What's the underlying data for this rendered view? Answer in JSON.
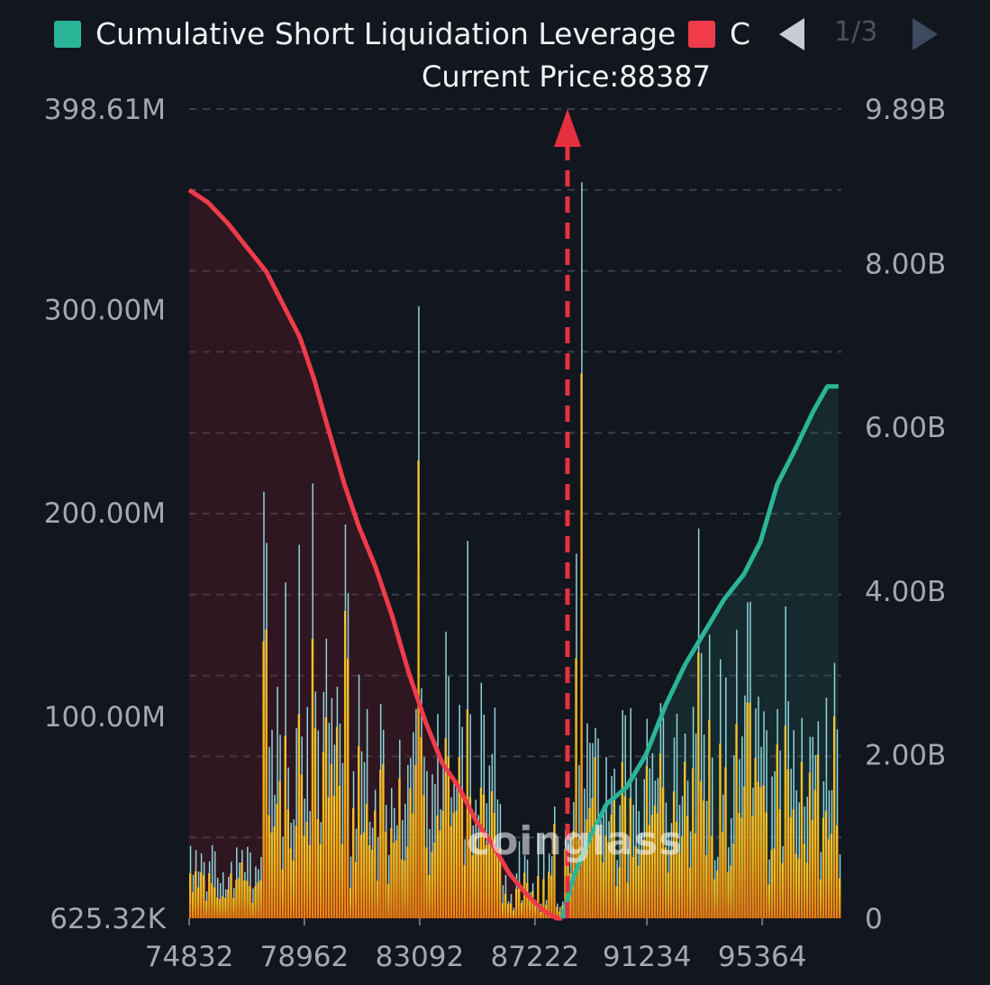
{
  "legend": {
    "items": [
      {
        "label": "Cumulative Short Liquidation Leverage",
        "color": "#2bb598"
      },
      {
        "label": "C",
        "color": "#ef3b4a"
      }
    ],
    "page": "1/3"
  },
  "current_price_label": "Current Price:88387",
  "watermark": "coinglass",
  "colors": {
    "background": "#12161f",
    "short_line": "#2bb598",
    "long_line": "#ef3b4a",
    "bar_lower": "#f07c12",
    "bar_mid": "#f2b417",
    "bar_top": "#8fd3d8",
    "current_price_marker": "#e6303f"
  },
  "chart_data": {
    "type": "bar",
    "x_ticks": [
      "74832",
      "78962",
      "83092",
      "87222",
      "91234",
      "95364"
    ],
    "x_range": [
      74832,
      98200
    ],
    "current_price": 88387,
    "y_left": {
      "ticks": [
        "398.61M",
        "300.00M",
        "200.00M",
        "100.00M",
        "625.32K"
      ],
      "range": [
        0.63,
        398.61
      ],
      "unit": "M"
    },
    "y_right": {
      "ticks": [
        "9.89B",
        "8.00B",
        "6.00B",
        "4.00B",
        "2.00B",
        "0"
      ],
      "range": [
        0,
        9.89
      ],
      "unit": "B"
    },
    "series": [
      {
        "name": "Cumulative Short Liquidation Leverage",
        "axis": "right",
        "points": [
          [
            88200,
            0
          ],
          [
            88600,
            0.5
          ],
          [
            89200,
            1.0
          ],
          [
            89800,
            1.4
          ],
          [
            90500,
            1.6
          ],
          [
            91200,
            2.0
          ],
          [
            91900,
            2.6
          ],
          [
            92600,
            3.1
          ],
          [
            93300,
            3.5
          ],
          [
            94000,
            3.9
          ],
          [
            94700,
            4.2
          ],
          [
            95300,
            4.6
          ],
          [
            95900,
            5.3
          ],
          [
            96500,
            5.7
          ],
          [
            97200,
            6.2
          ],
          [
            97700,
            6.5
          ],
          [
            98100,
            6.5
          ]
        ]
      },
      {
        "name": "C",
        "axis": "right",
        "points": [
          [
            74832,
            8.9
          ],
          [
            75500,
            8.75
          ],
          [
            76200,
            8.5
          ],
          [
            76900,
            8.2
          ],
          [
            77600,
            7.9
          ],
          [
            78200,
            7.5
          ],
          [
            78800,
            7.1
          ],
          [
            79300,
            6.6
          ],
          [
            79800,
            6.0
          ],
          [
            80400,
            5.3
          ],
          [
            80900,
            4.8
          ],
          [
            81500,
            4.3
          ],
          [
            82100,
            3.7
          ],
          [
            82700,
            3.0
          ],
          [
            83300,
            2.4
          ],
          [
            83900,
            1.9
          ],
          [
            84500,
            1.6
          ],
          [
            85100,
            1.2
          ],
          [
            85700,
            0.9
          ],
          [
            86300,
            0.55
          ],
          [
            86900,
            0.3
          ],
          [
            87500,
            0.1
          ],
          [
            88000,
            0
          ],
          [
            88200,
            0
          ]
        ]
      }
    ],
    "bars": {
      "axis": "left",
      "count": 240,
      "notable_peaks": [
        [
          83092,
          301
        ],
        [
          88900,
          362
        ],
        [
          87900,
          55
        ]
      ]
    }
  }
}
